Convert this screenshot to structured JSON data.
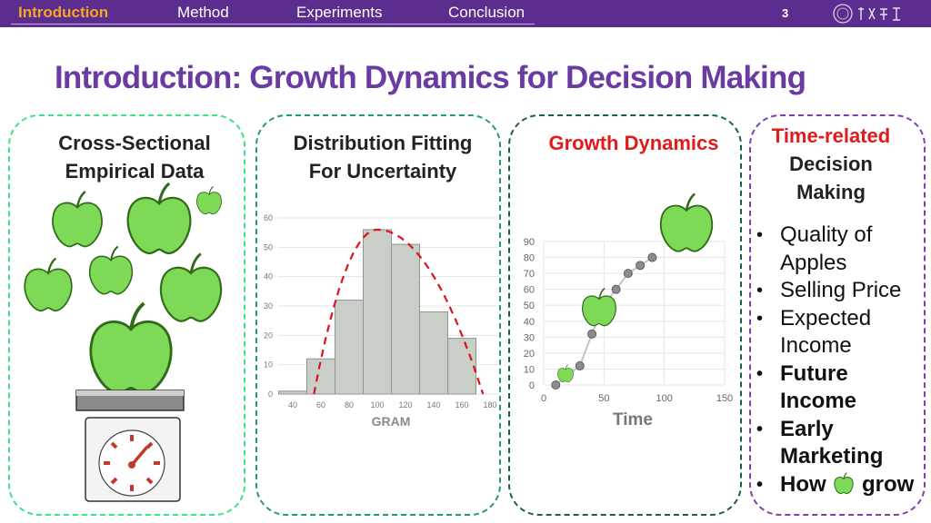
{
  "nav": {
    "items": [
      "Introduction",
      "Method",
      "Experiments",
      "Conclusion"
    ],
    "active": "Introduction",
    "page_number": "3"
  },
  "title": "Introduction: Growth Dynamics for Decision Making",
  "panels": {
    "cross_sectional": {
      "title_line1": "Cross-Sectional",
      "title_line2": "Empirical Data",
      "color": "#3ee08a"
    },
    "distribution": {
      "title_line1": "Distribution Fitting",
      "title_line2": "For Uncertainty",
      "color": "#1f9e6b"
    },
    "growth": {
      "title": "Growth Dynamics",
      "title_color": "#e01b1b",
      "color": "#14633f"
    },
    "decision": {
      "title_line1": "Time-related",
      "title_line2": "Decision",
      "title_line3": "Making",
      "color": "#7b3fb0"
    }
  },
  "bullets": [
    {
      "lines": [
        "Quality of",
        "Apples"
      ],
      "bold": false
    },
    {
      "lines": [
        "Selling Price"
      ],
      "bold": false
    },
    {
      "lines": [
        "Expected",
        "Income"
      ],
      "bold": false
    },
    {
      "lines": [
        "Future",
        "Income"
      ],
      "bold": true
    },
    {
      "lines": [
        "Early",
        "Marketing"
      ],
      "bold": true
    },
    {
      "lines": [
        "How",
        "grow"
      ],
      "bold": true,
      "has_apple_icon": true
    }
  ],
  "chart_data": [
    {
      "type": "bar",
      "xlabel": "GRAM",
      "ylabel": "",
      "x_ticks": [
        40,
        60,
        80,
        100,
        120,
        140,
        160,
        180
      ],
      "y_ticks": [
        0,
        10,
        20,
        30,
        40,
        50,
        60
      ],
      "ylim": [
        0,
        60
      ],
      "xlim": [
        40,
        180
      ],
      "bins": [
        {
          "x0": 30,
          "x1": 50,
          "value": 1
        },
        {
          "x0": 50,
          "x1": 70,
          "value": 12
        },
        {
          "x0": 70,
          "x1": 90,
          "value": 32
        },
        {
          "x0": 90,
          "x1": 110,
          "value": 56
        },
        {
          "x0": 110,
          "x1": 130,
          "value": 51
        },
        {
          "x0": 130,
          "x1": 150,
          "value": 28
        },
        {
          "x0": 150,
          "x1": 170,
          "value": 19
        }
      ],
      "fitted_curve": {
        "peak_x": 100,
        "peak_y": 56,
        "zero_left": 55,
        "zero_right": 175,
        "style": "dashed",
        "color": "#d9141b"
      },
      "grid": true,
      "bar_color": "#c9cec9"
    },
    {
      "type": "line",
      "xlabel": "Time",
      "ylabel": "",
      "x_ticks": [
        0,
        50,
        100,
        150
      ],
      "y_ticks": [
        0,
        10,
        20,
        30,
        40,
        50,
        60,
        70,
        80,
        90
      ],
      "xlim": [
        0,
        150
      ],
      "ylim": [
        0,
        90
      ],
      "series": [
        {
          "x": [
            10,
            30,
            40,
            50,
            60,
            70,
            80,
            90
          ],
          "y": [
            0,
            12,
            32,
            50,
            60,
            70,
            75,
            80
          ]
        }
      ],
      "grid": true,
      "marker_color": "#8c8c8c"
    }
  ]
}
